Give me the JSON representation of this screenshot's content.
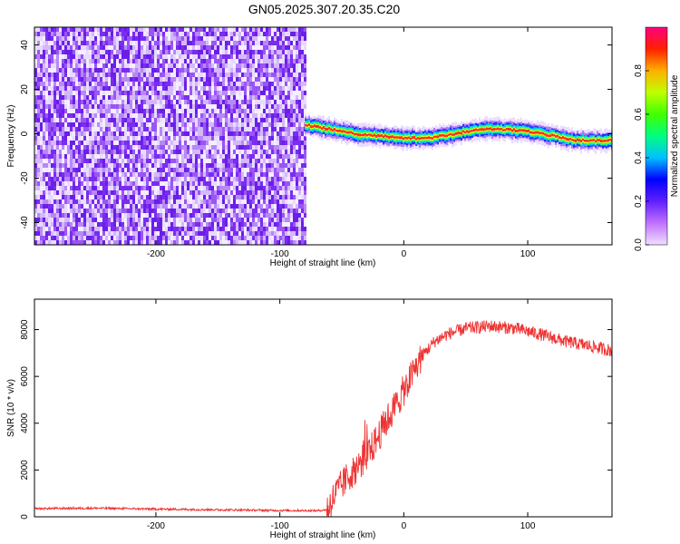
{
  "title": "GN05.2025.307.20.35.C20",
  "chart_data": [
    {
      "type": "heatmap",
      "name": "spectrogram",
      "xlabel": "Height of straight line (km)",
      "ylabel": "Frequency (Hz)",
      "xlim": [
        -298,
        168
      ],
      "ylim": [
        -50,
        48
      ],
      "xticks": [
        -200,
        -100,
        0,
        100
      ],
      "xtick_labels": [
        "-200",
        "-100",
        "0",
        "100"
      ],
      "yticks": [
        -40,
        -20,
        0,
        20,
        40
      ],
      "ytick_labels": [
        "-40",
        "-20",
        "0",
        "20",
        "40"
      ],
      "noise_region_end_km": -80,
      "signal_trace": {
        "x": [
          -80,
          -60,
          -40,
          -20,
          0,
          20,
          40,
          60,
          80,
          100,
          120,
          140,
          168
        ],
        "y": [
          4,
          2,
          0,
          -1,
          -2,
          -2,
          0,
          2,
          2,
          1,
          -1,
          -3,
          -3
        ]
      },
      "colorbar": {
        "label": "Normalized spectral amplitude",
        "range": [
          0,
          1
        ],
        "ticks": [
          0.0,
          0.2,
          0.4,
          0.6,
          0.8
        ],
        "tick_labels": [
          "0.0",
          "0.2",
          "0.4",
          "0.6",
          "0.8"
        ]
      }
    },
    {
      "type": "line",
      "name": "snr",
      "xlabel": "Height of straight line (km)",
      "ylabel": "SNR (10 * v/v)",
      "xlim": [
        -298,
        168
      ],
      "ylim": [
        0,
        9300
      ],
      "xticks": [
        -200,
        -100,
        0,
        100
      ],
      "xtick_labels": [
        "-200",
        "-100",
        "0",
        "100"
      ],
      "yticks": [
        0,
        2000,
        4000,
        6000,
        8000
      ],
      "ytick_labels": [
        "0",
        "2000",
        "4000",
        "6000",
        "8000"
      ],
      "color": "#ee3333",
      "series": {
        "name": "SNR",
        "x": [
          -298,
          -250,
          -200,
          -150,
          -100,
          -70,
          -62,
          -55,
          -45,
          -35,
          -25,
          -15,
          -5,
          5,
          15,
          25,
          35,
          50,
          70,
          90,
          110,
          130,
          150,
          168
        ],
        "y": [
          350,
          370,
          330,
          300,
          270,
          260,
          300,
          1000,
          1700,
          2300,
          3000,
          4000,
          4900,
          5900,
          6900,
          7500,
          7800,
          8050,
          8150,
          8050,
          7800,
          7500,
          7300,
          7100
        ]
      }
    }
  ]
}
